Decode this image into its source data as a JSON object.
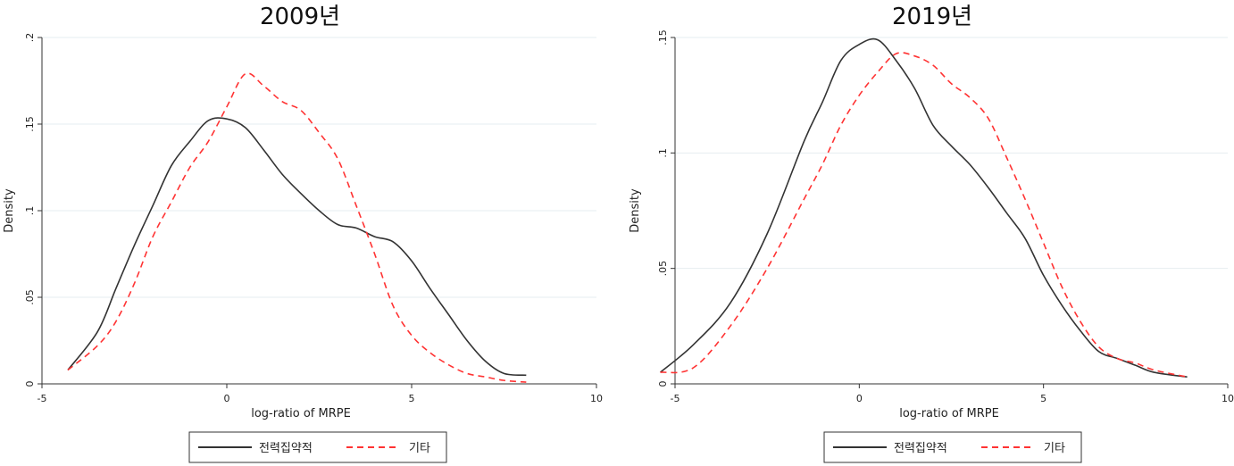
{
  "chart_data": [
    {
      "type": "line",
      "title": "2009년",
      "xlabel": "log-ratio of MRPE",
      "ylabel": "Density",
      "xlim": [
        -5,
        10
      ],
      "ylim": [
        0,
        0.2
      ],
      "xticks": [
        -5,
        0,
        5,
        10
      ],
      "xtick_labels": [
        "-5",
        "0",
        "5",
        "10"
      ],
      "yticks": [
        0,
        0.05,
        0.1,
        0.15,
        0.2
      ],
      "ytick_labels": [
        "0",
        ".05",
        ".1",
        ".15",
        ".2"
      ],
      "grid": true,
      "legend_position": "bottom",
      "series": [
        {
          "name": "전력집약적",
          "color": "#333333",
          "style": "solid",
          "x": [
            -4.3,
            -3.5,
            -3,
            -2.5,
            -2,
            -1.5,
            -1,
            -0.5,
            0,
            0.5,
            1,
            1.5,
            2,
            2.5,
            3,
            3.5,
            4,
            4.5,
            5,
            5.5,
            6,
            6.5,
            7,
            7.5,
            8.1
          ],
          "y": [
            0.008,
            0.03,
            0.055,
            0.08,
            0.103,
            0.126,
            0.14,
            0.152,
            0.153,
            0.148,
            0.135,
            0.121,
            0.11,
            0.1,
            0.092,
            0.09,
            0.085,
            0.082,
            0.071,
            0.055,
            0.04,
            0.025,
            0.013,
            0.006,
            0.005
          ]
        },
        {
          "name": "기타",
          "color": "#ff3333",
          "style": "dashed",
          "x": [
            -4.3,
            -3.5,
            -3,
            -2.5,
            -2,
            -1.5,
            -1,
            -0.5,
            0,
            0.5,
            1,
            1.5,
            2,
            2.5,
            3,
            3.5,
            4,
            4.5,
            5,
            5.5,
            6,
            6.5,
            7,
            7.5,
            8.1
          ],
          "y": [
            0.008,
            0.022,
            0.036,
            0.058,
            0.085,
            0.105,
            0.125,
            0.14,
            0.16,
            0.179,
            0.172,
            0.163,
            0.158,
            0.145,
            0.13,
            0.103,
            0.075,
            0.045,
            0.028,
            0.018,
            0.011,
            0.006,
            0.004,
            0.002,
            0.001
          ]
        }
      ]
    },
    {
      "type": "line",
      "title": "2019년",
      "xlabel": "log-ratio of MRPE",
      "ylabel": "Density",
      "xlim": [
        -5,
        10
      ],
      "ylim": [
        0,
        0.15
      ],
      "xticks": [
        -5,
        0,
        5,
        10
      ],
      "xtick_labels": [
        "-5",
        "0",
        "5",
        "10"
      ],
      "yticks": [
        0,
        0.05,
        0.1,
        0.15
      ],
      "ytick_labels": [
        "0",
        ".05",
        ".1",
        ".15"
      ],
      "grid": true,
      "legend_position": "bottom",
      "series": [
        {
          "name": "전력집약적",
          "color": "#333333",
          "style": "solid",
          "x": [
            -5.4,
            -4.5,
            -3.5,
            -2.5,
            -1.5,
            -1,
            -0.5,
            0,
            0.5,
            1,
            1.5,
            2,
            2.5,
            3,
            3.5,
            4,
            4.5,
            5,
            5.5,
            6,
            6.5,
            7,
            7.5,
            8,
            8.9
          ],
          "y": [
            0.005,
            0.017,
            0.035,
            0.065,
            0.105,
            0.122,
            0.14,
            0.147,
            0.149,
            0.14,
            0.128,
            0.112,
            0.103,
            0.095,
            0.085,
            0.074,
            0.063,
            0.047,
            0.034,
            0.023,
            0.014,
            0.011,
            0.008,
            0.005,
            0.003
          ]
        },
        {
          "name": "기타",
          "color": "#ff3333",
          "style": "dashed",
          "x": [
            -5.4,
            -4.5,
            -3.5,
            -2.5,
            -1.5,
            -1,
            -0.5,
            0,
            0.5,
            1,
            1.5,
            2,
            2.5,
            3,
            3.5,
            4,
            4.5,
            5,
            5.5,
            6,
            6.5,
            7,
            7.5,
            8,
            8.9
          ],
          "y": [
            0.005,
            0.007,
            0.025,
            0.05,
            0.08,
            0.095,
            0.112,
            0.125,
            0.135,
            0.143,
            0.142,
            0.138,
            0.13,
            0.124,
            0.115,
            0.098,
            0.08,
            0.061,
            0.042,
            0.027,
            0.016,
            0.011,
            0.009,
            0.006,
            0.003
          ]
        }
      ]
    }
  ]
}
